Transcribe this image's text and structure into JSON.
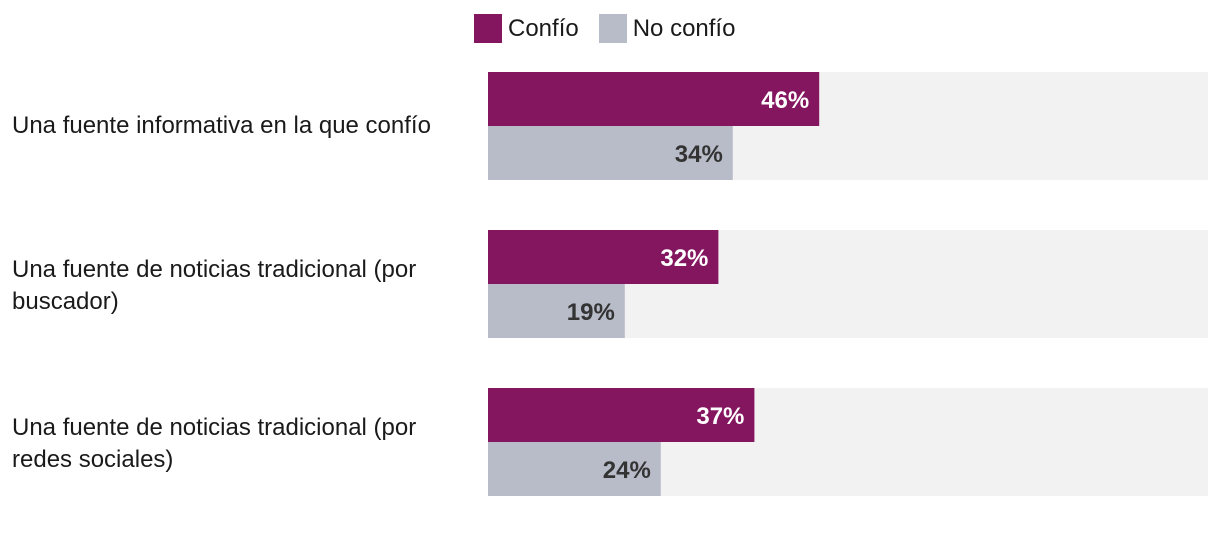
{
  "colors": {
    "trust": "#84155f",
    "no_trust": "#b8bcc8",
    "track": "#f2f2f2",
    "label_light": "#ffffff",
    "label_dark": "#333333"
  },
  "chart_data": {
    "type": "bar",
    "orientation": "horizontal",
    "categories": [
      "Una fuente informativa en la que confío",
      "Una fuente de noticias tradicional (por buscador)",
      "Una fuente de noticias tradicional (por redes sociales)"
    ],
    "series": [
      {
        "name": "Confío",
        "values": [
          46,
          32,
          37
        ],
        "labels": [
          "46%",
          "32%",
          "37%"
        ]
      },
      {
        "name": "No confío",
        "values": [
          34,
          19,
          24
        ],
        "labels": [
          "34%",
          "19%",
          "24%"
        ]
      }
    ],
    "xlim": [
      0,
      100
    ],
    "grid": false,
    "legend_position": "top"
  }
}
